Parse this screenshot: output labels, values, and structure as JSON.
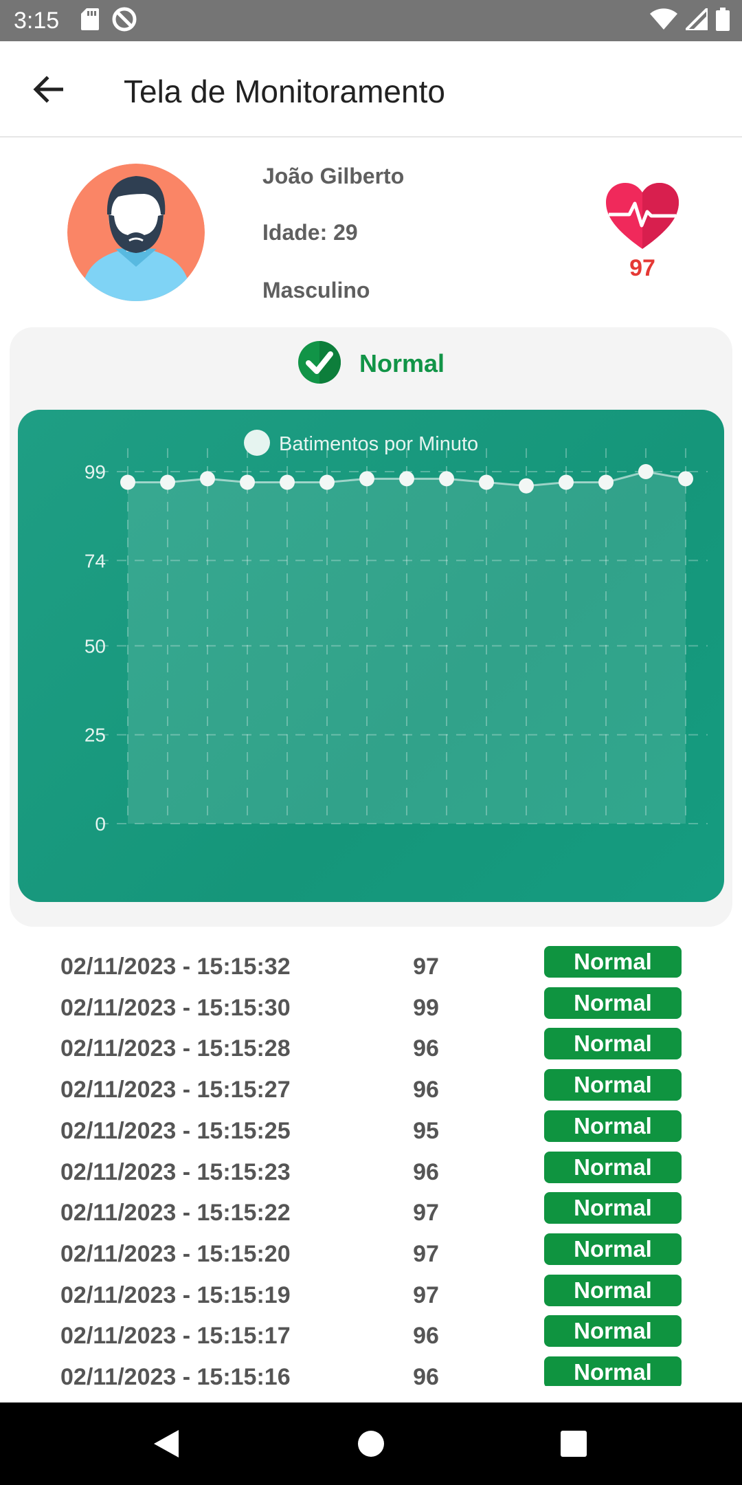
{
  "status_bar": {
    "time": "3:15",
    "left_icons": [
      "sd-card-icon",
      "do-not-disturb-icon"
    ],
    "right_icons": [
      "wifi-icon",
      "cell-signal-icon",
      "battery-icon"
    ]
  },
  "app_bar": {
    "title": "Tela de Monitoramento",
    "back_icon": "arrow-back-icon"
  },
  "profile": {
    "name": "João Gilberto",
    "age": "Idade: 29",
    "gender": "Masculino",
    "bpm": "97",
    "heart_color": "#f0295b",
    "avatar_bg": "#fa8566"
  },
  "status": {
    "label": "Normal",
    "icon": "check-circle-icon",
    "color": "#119447"
  },
  "chart_data": {
    "type": "line",
    "legend": "Batimentos por Minuto",
    "legend_position": "top-center",
    "yticks": [
      "99",
      "74",
      "50",
      "25",
      "0"
    ],
    "ylim": [
      0,
      99
    ],
    "grid": true,
    "series": [
      {
        "name": "Batimentos por Minuto",
        "values": [
          96,
          96,
          97,
          96,
          96,
          96,
          97,
          97,
          97,
          96,
          95,
          96,
          96,
          99,
          97
        ]
      }
    ]
  },
  "readings": [
    {
      "time": "02/11/2023 - 15:15:32",
      "value": "97",
      "status": "Normal"
    },
    {
      "time": "02/11/2023 - 15:15:30",
      "value": "99",
      "status": "Normal"
    },
    {
      "time": "02/11/2023 - 15:15:28",
      "value": "96",
      "status": "Normal"
    },
    {
      "time": "02/11/2023 - 15:15:27",
      "value": "96",
      "status": "Normal"
    },
    {
      "time": "02/11/2023 - 15:15:25",
      "value": "95",
      "status": "Normal"
    },
    {
      "time": "02/11/2023 - 15:15:23",
      "value": "96",
      "status": "Normal"
    },
    {
      "time": "02/11/2023 - 15:15:22",
      "value": "97",
      "status": "Normal"
    },
    {
      "time": "02/11/2023 - 15:15:20",
      "value": "97",
      "status": "Normal"
    },
    {
      "time": "02/11/2023 - 15:15:19",
      "value": "97",
      "status": "Normal"
    },
    {
      "time": "02/11/2023 - 15:15:17",
      "value": "96",
      "status": "Normal"
    },
    {
      "time": "02/11/2023 - 15:15:16",
      "value": "96",
      "status": "Normal"
    }
  ],
  "nav_bar": {
    "buttons": [
      "nav-back-icon",
      "nav-home-icon",
      "nav-recents-icon"
    ]
  }
}
